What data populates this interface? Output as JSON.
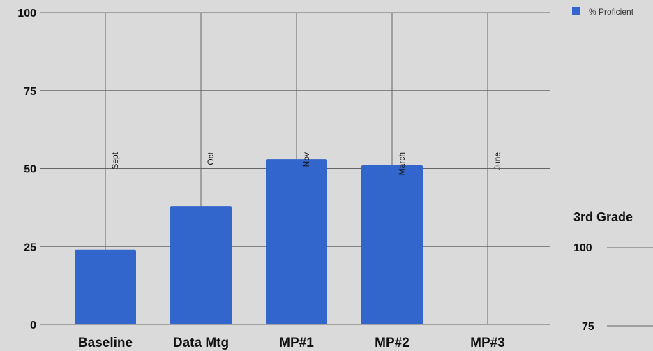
{
  "chart_data": [
    {
      "type": "bar",
      "title": "",
      "xlabel": "",
      "ylabel": "",
      "ylim": [
        0,
        100
      ],
      "yticks": [
        0,
        25,
        50,
        75,
        100
      ],
      "grid": true,
      "legend_position": "top-right",
      "categories": [
        "Baseline",
        "Data Mtg",
        "MP#1",
        "MP#2",
        "MP#3"
      ],
      "category_annotations": [
        "Sept",
        "Oct",
        "Nov",
        "March",
        "June"
      ],
      "series": [
        {
          "name": "% Proficient",
          "color": "#3366cc",
          "values": [
            24,
            38,
            53,
            51,
            null
          ]
        }
      ]
    },
    {
      "type": "bar",
      "title": "3rd Grade",
      "partial": true,
      "visible_yticks": [
        100,
        75
      ]
    }
  ]
}
